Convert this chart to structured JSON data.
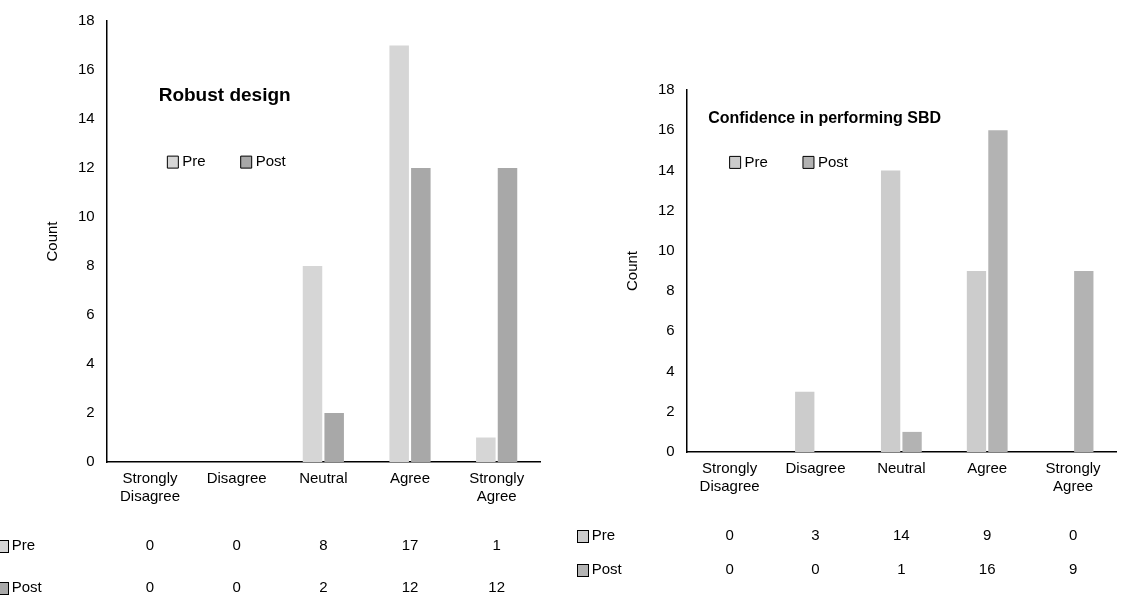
{
  "chart_data": [
    {
      "type": "bar",
      "title": "Robust design",
      "ylabel": "Count",
      "categories": [
        "Strongly Disagree",
        "Disagree",
        "Neutral",
        "Agree",
        "Strongly Agree"
      ],
      "series": [
        {
          "name": "Pre",
          "color": "#d6d6d6",
          "values": [
            0,
            0,
            8,
            17,
            1
          ]
        },
        {
          "name": "Post",
          "color": "#a8a8a8",
          "values": [
            0,
            0,
            2,
            12,
            12
          ]
        }
      ],
      "ylim": [
        0,
        18
      ],
      "yticks": [
        0,
        2,
        4,
        6,
        8,
        10,
        12,
        14,
        16,
        18
      ],
      "grid": false,
      "legend": "top left",
      "data_labels": true
    },
    {
      "type": "bar",
      "title": "Confidence in performing SBD",
      "ylabel": "Count",
      "categories": [
        "Strongly Disagree",
        "Disagree",
        "Neutral",
        "Agree",
        "Strongly Agree"
      ],
      "series": [
        {
          "name": "Pre",
          "color": "#cccccc",
          "values": [
            0,
            3,
            14,
            9,
            0
          ]
        },
        {
          "name": "Post",
          "color": "#b3b3b3",
          "values": [
            0,
            0,
            1,
            16,
            9
          ]
        }
      ],
      "ylim": [
        0,
        18
      ],
      "yticks": [
        0,
        2,
        4,
        6,
        8,
        10,
        12,
        14,
        16,
        18
      ],
      "grid": false,
      "legend": "top left",
      "data_labels": true
    }
  ]
}
